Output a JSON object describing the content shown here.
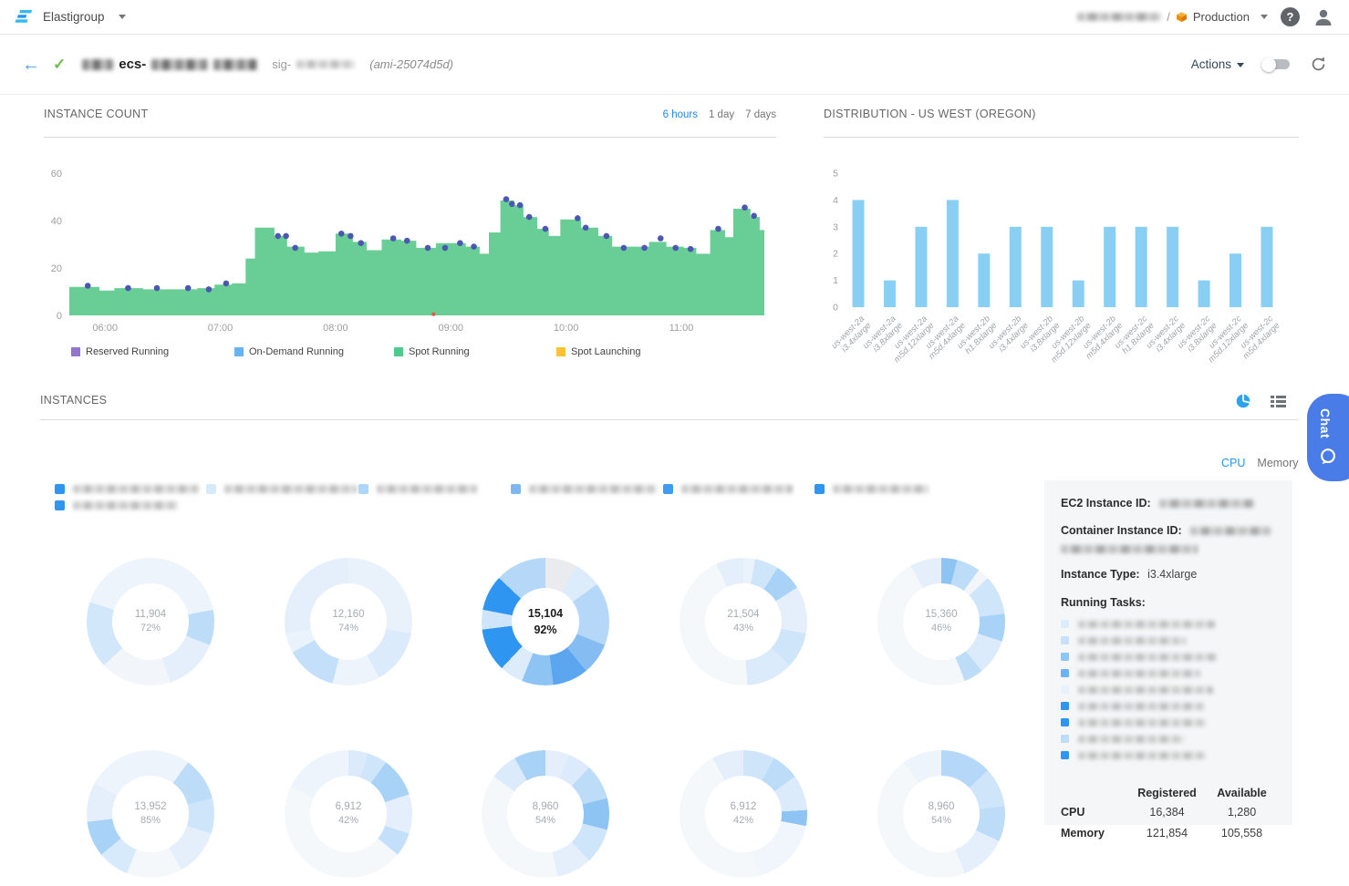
{
  "nav": {
    "product": "Elastigroup",
    "separator": "/",
    "environment": "Production"
  },
  "header": {
    "title_visible": "ecs-",
    "sig_prefix": "sig-",
    "ami": "(ami-25074d5d)",
    "actions_label": "Actions"
  },
  "instance_count": {
    "title": "INSTANCE COUNT",
    "ranges": [
      "6 hours",
      "1 day",
      "7 days"
    ],
    "active_range": "6 hours"
  },
  "distribution": {
    "title": "DISTRIBUTION - US WEST (OREGON)"
  },
  "instances": {
    "title": "INSTANCES",
    "tabs": [
      "CPU",
      "Memory"
    ],
    "active_tab": "CPU",
    "legend_colors": [
      "#2e96f0",
      "#d6eafc",
      "#aed6f8",
      "#7db9f0",
      "#3f9df1",
      "#2e96f0",
      "#2e96f0"
    ]
  },
  "panel": {
    "ec2_label": "EC2 Instance ID:",
    "container_label": "Container Instance ID:",
    "type_label": "Instance Type:",
    "type_value": "i3.4xlarge",
    "tasks_label": "Running Tasks:",
    "task_colors": [
      "#ddecfb",
      "#c7e1fa",
      "#90c6f5",
      "#6cb3f2",
      "#e8f2fd",
      "#2e96f0",
      "#2e96f0",
      "#bcdcf8",
      "#2e96f0"
    ],
    "table": {
      "headers": [
        "Registered",
        "Available"
      ],
      "rows": [
        {
          "label": "CPU",
          "registered": "16,384",
          "available": "1,280"
        },
        {
          "label": "Memory",
          "registered": "121,854",
          "available": "105,558"
        }
      ]
    }
  },
  "chat": {
    "label": "Chat"
  },
  "chart_data": [
    {
      "type": "area",
      "title": "INSTANCE COUNT",
      "xlim": [
        5.69,
        11.72
      ],
      "ylim": [
        0,
        60
      ],
      "yticks": [
        [
          0,
          "0"
        ],
        [
          20,
          "20"
        ],
        [
          40,
          "40"
        ],
        [
          60,
          "60"
        ]
      ],
      "xticks": [
        [
          6,
          "06:00"
        ],
        [
          7,
          "07:00"
        ],
        [
          8,
          "08:00"
        ],
        [
          9,
          "09:00"
        ],
        [
          10,
          "10:00"
        ],
        [
          11,
          "11:00"
        ]
      ],
      "area_color": "#69ce96",
      "dot_color": "#4c57b2",
      "red_marker": [
        8.85,
        0.5
      ],
      "steps": [
        [
          5.69,
          12
        ],
        [
          5.95,
          10.5
        ],
        [
          6.08,
          11.5
        ],
        [
          6.33,
          11
        ],
        [
          6.55,
          11
        ],
        [
          6.8,
          11.5
        ],
        [
          6.95,
          13
        ],
        [
          7.1,
          13.5
        ],
        [
          7.22,
          24
        ],
        [
          7.3,
          37
        ],
        [
          7.47,
          33.5
        ],
        [
          7.58,
          29
        ],
        [
          7.73,
          26.5
        ],
        [
          7.85,
          27
        ],
        [
          8.0,
          34.5
        ],
        [
          8.15,
          31
        ],
        [
          8.27,
          27.5
        ],
        [
          8.4,
          32
        ],
        [
          8.57,
          31.5
        ],
        [
          8.7,
          28.5
        ],
        [
          8.87,
          30.5
        ],
        [
          9.13,
          29
        ],
        [
          9.25,
          26
        ],
        [
          9.33,
          35
        ],
        [
          9.43,
          48.5
        ],
        [
          9.55,
          46.5
        ],
        [
          9.63,
          41.5
        ],
        [
          9.75,
          36.5
        ],
        [
          9.85,
          33.5
        ],
        [
          9.95,
          40.5
        ],
        [
          10.13,
          37
        ],
        [
          10.28,
          33.5
        ],
        [
          10.4,
          29
        ],
        [
          10.72,
          31
        ],
        [
          10.87,
          29
        ],
        [
          11.02,
          28.5
        ],
        [
          11.13,
          26
        ],
        [
          11.25,
          36
        ],
        [
          11.38,
          33
        ],
        [
          11.45,
          45
        ],
        [
          11.6,
          41.5
        ],
        [
          11.68,
          36
        ]
      ],
      "dots": [
        [
          5.85,
          12.5
        ],
        [
          6.2,
          11.5
        ],
        [
          6.45,
          11.5
        ],
        [
          6.72,
          11.5
        ],
        [
          6.9,
          11
        ],
        [
          7.05,
          13.5
        ],
        [
          7.5,
          33.5
        ],
        [
          7.57,
          33.5
        ],
        [
          7.65,
          28.5
        ],
        [
          8.05,
          34.5
        ],
        [
          8.13,
          33.5
        ],
        [
          8.22,
          30.5
        ],
        [
          8.5,
          32.5
        ],
        [
          8.62,
          31.5
        ],
        [
          8.8,
          28.5
        ],
        [
          8.95,
          28.5
        ],
        [
          9.08,
          30.5
        ],
        [
          9.2,
          29
        ],
        [
          9.48,
          49
        ],
        [
          9.53,
          47
        ],
        [
          9.6,
          46.5
        ],
        [
          9.68,
          41.5
        ],
        [
          9.82,
          36.5
        ],
        [
          10.1,
          41
        ],
        [
          10.17,
          37
        ],
        [
          10.35,
          33.5
        ],
        [
          10.5,
          28.5
        ],
        [
          10.68,
          28.5
        ],
        [
          10.82,
          32.5
        ],
        [
          10.95,
          28.5
        ],
        [
          11.08,
          28
        ],
        [
          11.32,
          36.5
        ],
        [
          11.55,
          45.5
        ],
        [
          11.63,
          42
        ]
      ],
      "legend": [
        {
          "label": "Reserved Running",
          "color": "#9575cd"
        },
        {
          "label": "On-Demand Running",
          "color": "#64b5f6"
        },
        {
          "label": "Spot Running",
          "color": "#4fca8e"
        },
        {
          "label": "Spot Launching",
          "color": "#fdc230"
        }
      ]
    },
    {
      "type": "bar",
      "title": "DISTRIBUTION - US WEST (OREGON)",
      "bar_color": "#89cff3",
      "ylim": [
        0,
        5
      ],
      "yticks": [
        "0",
        "1",
        "2",
        "3",
        "4",
        "5"
      ],
      "categories": [
        [
          "us-west-2a",
          "i3.4xlarge"
        ],
        [
          "us-west-2a",
          "i3.8xlarge"
        ],
        [
          "us-west-2a",
          "m5d.12xlarge"
        ],
        [
          "us-west-2a",
          "m5d.4xlarge"
        ],
        [
          "us-west-2b",
          "h1.8xlarge"
        ],
        [
          "us-west-2b",
          "i3.4xlarge"
        ],
        [
          "us-west-2b",
          "i3.8xlarge"
        ],
        [
          "us-west-2b",
          "m5d.12xlarge"
        ],
        [
          "us-west-2b",
          "m5d.4xlarge"
        ],
        [
          "us-west-2c",
          "h1.8xlarge"
        ],
        [
          "us-west-2c",
          "i3.4xlarge"
        ],
        [
          "us-west-2c",
          "i3.8xlarge"
        ],
        [
          "us-west-2c",
          "m5d.12xlarge"
        ],
        [
          "us-west-2c",
          "m5d.4xlarge"
        ]
      ],
      "values": [
        4,
        1,
        3,
        4,
        2,
        3,
        3,
        1,
        3,
        3,
        3,
        1,
        2,
        3
      ]
    },
    {
      "type": "donut-grid",
      "metric": "CPU",
      "items": [
        {
          "value": "11,904",
          "pct": "72%",
          "selected": false,
          "segments": [
            [
              "#eef4fb",
              22
            ],
            [
              "#bcdcf8",
              9
            ],
            [
              "#e4effb",
              14
            ],
            [
              "#f2f6fb",
              18
            ],
            [
              "#d2e7fa",
              17
            ],
            [
              "#eef4fb",
              20
            ]
          ]
        },
        {
          "value": "12,160",
          "pct": "74%",
          "selected": false,
          "segments": [
            [
              "#e9f2fb",
              28
            ],
            [
              "#dcebfb",
              14
            ],
            [
              "#eef4fb",
              12
            ],
            [
              "#c3dff9",
              13
            ],
            [
              "#eaf3fc",
              5
            ],
            [
              "#e4effb",
              28
            ]
          ]
        },
        {
          "value": "15,104",
          "pct": "92%",
          "selected": true,
          "segments": [
            [
              "#e9ebee",
              8
            ],
            [
              "#ddecfb",
              7
            ],
            [
              "#b5d8f8",
              16
            ],
            [
              "#85bcf2",
              8
            ],
            [
              "#5ba6ee",
              9
            ],
            [
              "#8ec4f3",
              8
            ],
            [
              "#ddecfb",
              6
            ],
            [
              "#2e96f0",
              11
            ],
            [
              "#cfe5fa",
              5
            ],
            [
              "#2e96f0",
              9
            ],
            [
              "#b5d8f8",
              13
            ]
          ]
        },
        {
          "value": "21,504",
          "pct": "43%",
          "selected": false,
          "segments": [
            [
              "#eaf3fc",
              3
            ],
            [
              "#cfe5fa",
              6
            ],
            [
              "#a8d2f6",
              7
            ],
            [
              "#e4effb",
              12
            ],
            [
              "#cfe5fa",
              9
            ],
            [
              "#dcebfb",
              12
            ],
            [
              "#f5f8fa",
              44
            ],
            [
              "#e4effb",
              7
            ]
          ]
        },
        {
          "value": "15,360",
          "pct": "46%",
          "selected": false,
          "segments": [
            [
              "#8ec4f3",
              4
            ],
            [
              "#bcdcf8",
              6
            ],
            [
              "#f2f6fb",
              3
            ],
            [
              "#cfe5fa",
              10
            ],
            [
              "#a8d2f6",
              7
            ],
            [
              "#dcebfb",
              9
            ],
            [
              "#bcdcf8",
              5
            ],
            [
              "#f5f8fa",
              48
            ],
            [
              "#e4effb",
              8
            ]
          ]
        },
        {
          "value": "13,952",
          "pct": "85%",
          "selected": false,
          "segments": [
            [
              "#eef4fb",
              10
            ],
            [
              "#bcdcf8",
              11
            ],
            [
              "#cfe5fa",
              9
            ],
            [
              "#e4effb",
              12
            ],
            [
              "#f5f8fa",
              14
            ],
            [
              "#d7eafb",
              8
            ],
            [
              "#a8d2f6",
              9
            ],
            [
              "#e4effb",
              10
            ],
            [
              "#eef4fb",
              17
            ]
          ]
        },
        {
          "value": "6,912",
          "pct": "42%",
          "selected": false,
          "segments": [
            [
              "#dcebfb",
              5
            ],
            [
              "#cfe5fa",
              5
            ],
            [
              "#a8d2f6",
              10
            ],
            [
              "#e4effb",
              10
            ],
            [
              "#c3dff9",
              6
            ],
            [
              "#f5f8fa",
              46
            ],
            [
              "#eef4fb",
              18
            ]
          ]
        },
        {
          "value": "8,960",
          "pct": "54%",
          "selected": false,
          "segments": [
            [
              "#e4effb",
              6
            ],
            [
              "#dcebfb",
              6
            ],
            [
              "#bcdcf8",
              9
            ],
            [
              "#8ec4f3",
              8
            ],
            [
              "#cfe5fa",
              9
            ],
            [
              "#e4effb",
              9
            ],
            [
              "#f5f8fa",
              38
            ],
            [
              "#dcebfb",
              7
            ],
            [
              "#a8d2f6",
              8
            ]
          ]
        },
        {
          "value": "6,912",
          "pct": "42%",
          "selected": false,
          "segments": [
            [
              "#cfe5fa",
              8
            ],
            [
              "#bcdcf8",
              7
            ],
            [
              "#dcebfb",
              9
            ],
            [
              "#8ec4f3",
              4
            ],
            [
              "#f0f6fc",
              18
            ],
            [
              "#f5f8fa",
              46
            ],
            [
              "#e4effb",
              8
            ]
          ]
        },
        {
          "value": "8,960",
          "pct": "54%",
          "selected": false,
          "segments": [
            [
              "#b5d8f8",
              13
            ],
            [
              "#cfe5fa",
              10
            ],
            [
              "#bcdcf8",
              9
            ],
            [
              "#e4effb",
              12
            ],
            [
              "#f5f8fa",
              46
            ],
            [
              "#eef4fb",
              10
            ]
          ]
        }
      ]
    }
  ]
}
